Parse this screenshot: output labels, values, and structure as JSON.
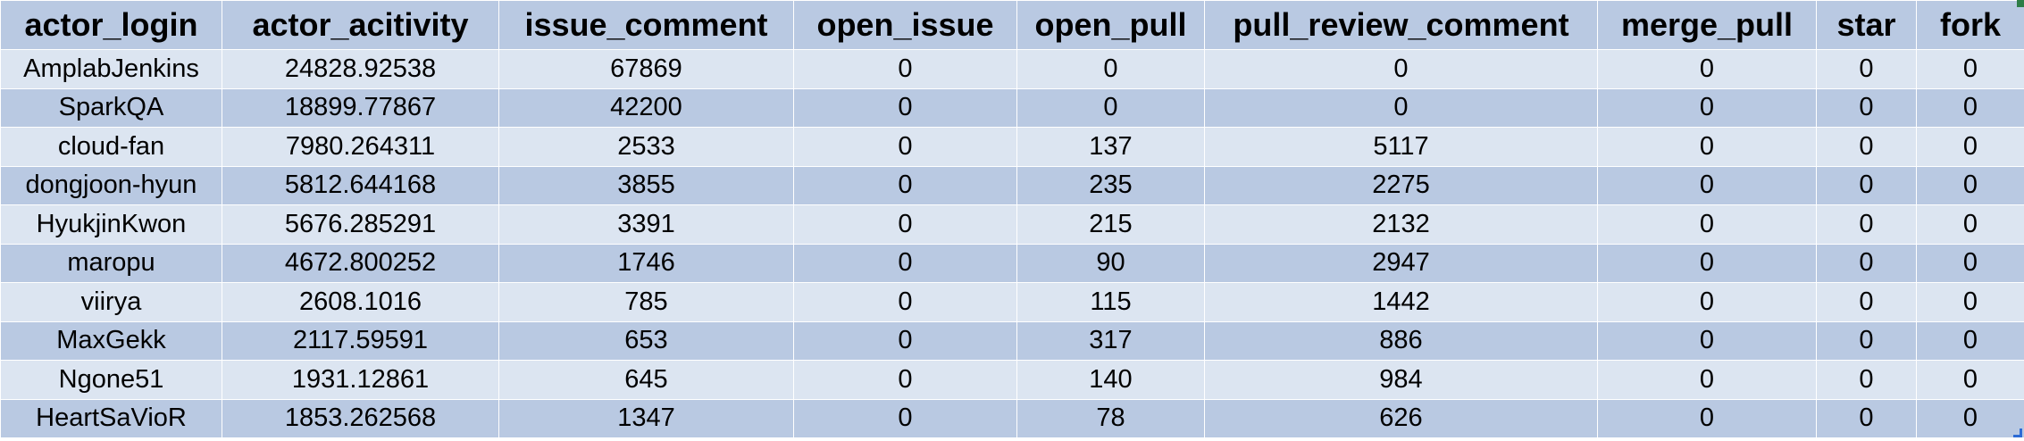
{
  "table": {
    "columns": [
      "actor_login",
      "actor_acitivity",
      "issue_comment",
      "open_issue",
      "open_pull",
      "pull_review_comment",
      "merge_pull",
      "star",
      "fork"
    ],
    "rows": [
      [
        "AmplabJenkins",
        "24828.92538",
        "67869",
        "0",
        "0",
        "0",
        "0",
        "0",
        "0"
      ],
      [
        "SparkQA",
        "18899.77867",
        "42200",
        "0",
        "0",
        "0",
        "0",
        "0",
        "0"
      ],
      [
        "cloud-fan",
        "7980.264311",
        "2533",
        "0",
        "137",
        "5117",
        "0",
        "0",
        "0"
      ],
      [
        "dongjoon-hyun",
        "5812.644168",
        "3855",
        "0",
        "235",
        "2275",
        "0",
        "0",
        "0"
      ],
      [
        "HyukjinKwon",
        "5676.285291",
        "3391",
        "0",
        "215",
        "2132",
        "0",
        "0",
        "0"
      ],
      [
        "maropu",
        "4672.800252",
        "1746",
        "0",
        "90",
        "2947",
        "0",
        "0",
        "0"
      ],
      [
        "viirya",
        "2608.1016",
        "785",
        "0",
        "115",
        "1442",
        "0",
        "0",
        "0"
      ],
      [
        "MaxGekk",
        "2117.59591",
        "653",
        "0",
        "317",
        "886",
        "0",
        "0",
        "0"
      ],
      [
        "Ngone51",
        "1931.12861",
        "645",
        "0",
        "140",
        "984",
        "0",
        "0",
        "0"
      ],
      [
        "HeartSaVioR",
        "1853.262568",
        "1347",
        "0",
        "78",
        "626",
        "0",
        "0",
        "0"
      ]
    ]
  },
  "colors": {
    "header_bg": "#b9c9e2",
    "row_light": "#dce5f1",
    "row_dark": "#b9c9e2",
    "selection_handle": "#2d6bd5"
  }
}
